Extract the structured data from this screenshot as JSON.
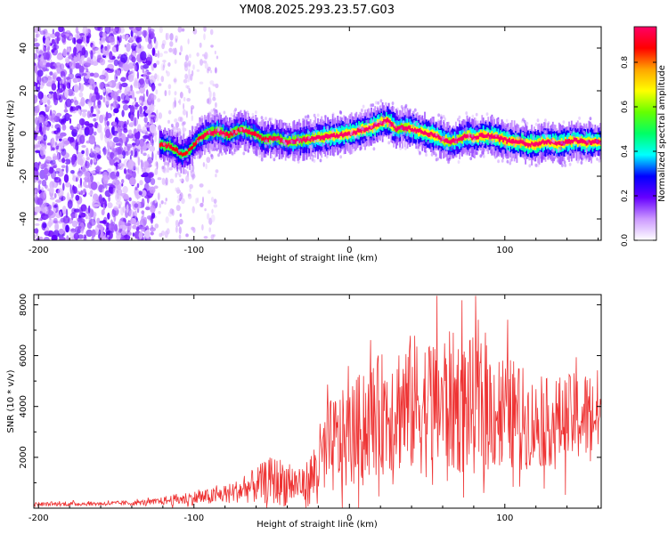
{
  "figure_title": "YM08.2025.293.23.57.G03",
  "chart_data": [
    {
      "type": "heatmap",
      "title": "YM08.2025.293.23.57.G03",
      "xlabel": "Height of straight line (km)",
      "ylabel": "Frequency (Hz)",
      "xlim": [
        -203,
        162
      ],
      "ylim": [
        -50,
        50
      ],
      "x_ticks": [
        -200,
        -100,
        0,
        100
      ],
      "x_tick_labels": [
        "-200",
        "-100",
        "0",
        "100"
      ],
      "y_ticks": [
        -40,
        -20,
        0,
        20,
        40
      ],
      "y_tick_labels": [
        "-40",
        "-20",
        "0",
        "20",
        "40"
      ],
      "noise_region_x": [
        -203,
        -125
      ],
      "sparse_noise_region_x": [
        -125,
        -85
      ],
      "signal_start_x": -122,
      "signal_track": {
        "x": [
          -122,
          -115,
          -108,
          -103,
          -98,
          -92,
          -85,
          -78,
          -70,
          -62,
          -55,
          -48,
          -40,
          -30,
          -20,
          -10,
          0,
          5,
          10,
          15,
          20,
          25,
          30,
          35,
          40,
          45,
          50,
          55,
          60,
          65,
          70,
          75,
          80,
          85,
          90,
          95,
          100,
          105,
          110,
          115,
          120,
          125,
          130,
          135,
          140,
          145,
          150,
          155,
          160
        ],
        "y": [
          -5,
          -6,
          -10,
          -8,
          -3,
          0,
          1,
          -1,
          2,
          0,
          -3,
          -2,
          -4,
          -3,
          -2,
          -1,
          0,
          1,
          2,
          3,
          5,
          6,
          2,
          3,
          2,
          1,
          0,
          -1,
          -3,
          -4,
          -3,
          -1,
          -2,
          -1,
          -1,
          -2,
          -3,
          -4,
          -4,
          -5,
          -5,
          -4,
          -4,
          -5,
          -4,
          -3,
          -4,
          -4,
          -4
        ],
        "peak_amplitude": [
          0.45,
          0.5,
          0.4,
          0.45,
          0.5,
          0.55,
          0.6,
          0.5,
          0.55,
          0.5,
          0.5,
          0.55,
          0.6,
          0.65,
          0.75,
          0.8,
          0.85,
          0.85,
          0.9,
          0.9,
          0.85,
          0.9,
          0.65,
          0.7,
          0.8,
          0.85,
          0.85,
          0.8,
          0.75,
          0.7,
          0.7,
          0.75,
          0.8,
          0.85,
          0.85,
          0.85,
          0.9,
          0.9,
          0.9,
          0.85,
          0.9,
          0.85,
          0.85,
          0.9,
          0.85,
          0.8,
          0.85,
          0.85,
          0.85
        ]
      },
      "colorbar": {
        "label": "Normalized spectral amplitude",
        "range": [
          0,
          0.96
        ],
        "ticks": [
          0,
          0.2,
          0.4,
          0.6,
          0.8
        ],
        "tick_labels": [
          "0.0",
          "0.2",
          "0.4",
          "0.6",
          "0.8"
        ],
        "colormap": [
          "#ffffff",
          "#cc99ff",
          "#6600ff",
          "#0000ff",
          "#00ffff",
          "#00ff66",
          "#66ff00",
          "#ffff00",
          "#ffa500",
          "#ff0000",
          "#ff0066"
        ]
      }
    },
    {
      "type": "line",
      "xlabel": "Height of straight line (km)",
      "ylabel": "SNR (10 * v/v)",
      "xlim": [
        -203,
        162
      ],
      "ylim": [
        0,
        8400
      ],
      "x_ticks": [
        -200,
        -100,
        0,
        100
      ],
      "x_tick_labels": [
        "-200",
        "-100",
        "0",
        "100"
      ],
      "y_ticks": [
        2000,
        4000,
        6000,
        8000
      ],
      "y_tick_labels": [
        "2000",
        "4000",
        "6000",
        "8000"
      ],
      "series": [
        {
          "name": "SNR",
          "color": "#ee3333",
          "envelope": {
            "x": [
              -203,
              -180,
              -160,
              -140,
              -125,
              -110,
              -100,
              -90,
              -80,
              -70,
              -60,
              -50,
              -40,
              -30,
              -25,
              -20,
              -15,
              -10,
              -5,
              0,
              10,
              20,
              30,
              40,
              50,
              60,
              70,
              80,
              90,
              100,
              110,
              120,
              130,
              140,
              150,
              160
            ],
            "mean": [
              150,
              170,
              180,
              200,
              250,
              350,
              400,
              450,
              550,
              700,
              900,
              1100,
              1000,
              900,
              1100,
              1700,
              2200,
              2500,
              2600,
              2800,
              3300,
              3700,
              4000,
              4100,
              4000,
              4200,
              4100,
              4000,
              3900,
              3800,
              3600,
              3300,
              3400,
              3500,
              3600,
              3700
            ],
            "spread": [
              100,
              100,
              100,
              120,
              150,
              300,
              350,
              400,
              450,
              600,
              900,
              1200,
              1200,
              800,
              1400,
              1900,
              2200,
              2500,
              2500,
              2600,
              2800,
              3000,
              3300,
              3500,
              3500,
              3600,
              3500,
              3400,
              3200,
              2900,
              2600,
              2200,
              2200,
              2200,
              2300,
              2300
            ]
          }
        }
      ]
    }
  ]
}
